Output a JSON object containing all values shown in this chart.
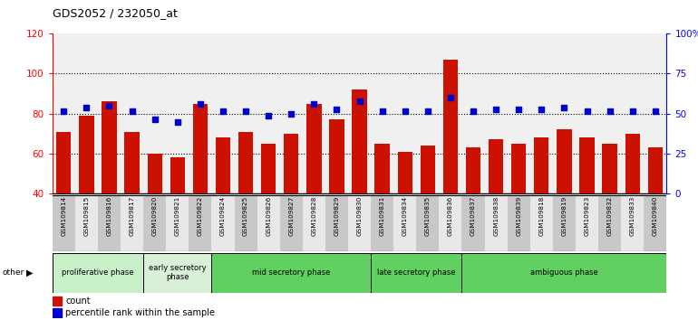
{
  "title": "GDS2052 / 232050_at",
  "samples": [
    "GSM109814",
    "GSM109815",
    "GSM109816",
    "GSM109817",
    "GSM109820",
    "GSM109821",
    "GSM109822",
    "GSM109824",
    "GSM109825",
    "GSM109826",
    "GSM109827",
    "GSM109828",
    "GSM109829",
    "GSM109830",
    "GSM109831",
    "GSM109834",
    "GSM109835",
    "GSM109836",
    "GSM109837",
    "GSM109838",
    "GSM109839",
    "GSM109818",
    "GSM109819",
    "GSM109823",
    "GSM109832",
    "GSM109833",
    "GSM109840"
  ],
  "counts": [
    71,
    79,
    86,
    71,
    60,
    58,
    85,
    68,
    71,
    65,
    70,
    85,
    77,
    92,
    65,
    61,
    64,
    107,
    63,
    67,
    65,
    68,
    72,
    68,
    65,
    70,
    63
  ],
  "percentiles_left": [
    81,
    83,
    84,
    81,
    77,
    76,
    85,
    81,
    81,
    79,
    80,
    85,
    82,
    86,
    81,
    81,
    81,
    88,
    81,
    82,
    82,
    82,
    83,
    81,
    81,
    81,
    81
  ],
  "bar_color": "#cc1100",
  "dot_color": "#0000cc",
  "ylim_left": [
    40,
    120
  ],
  "ylim_right": [
    0,
    100
  ],
  "yticks_left": [
    40,
    60,
    80,
    100,
    120
  ],
  "yticks_right": [
    0,
    25,
    50,
    75,
    100
  ],
  "ytick_labels_right": [
    "0",
    "25",
    "50",
    "75",
    "100%"
  ],
  "bg_plot": "#f0f0f0",
  "bg_label_dark": "#c8c8c8",
  "bg_label_light": "#e8e8e8",
  "phases": [
    {
      "label": "proliferative phase",
      "start": 0,
      "end": 3,
      "color": "#c8f0c8",
      "n_cols": 4
    },
    {
      "label": "early secretory\nphase",
      "start": 4,
      "end": 6,
      "color": "#d8f0d8",
      "n_cols": 3
    },
    {
      "label": "mid secretory phase",
      "start": 7,
      "end": 13,
      "color": "#60d060",
      "n_cols": 7
    },
    {
      "label": "late secretory phase",
      "start": 14,
      "end": 17,
      "color": "#60d060",
      "n_cols": 4
    },
    {
      "label": "ambiguous phase",
      "start": 18,
      "end": 26,
      "color": "#60d060",
      "n_cols": 9
    }
  ]
}
